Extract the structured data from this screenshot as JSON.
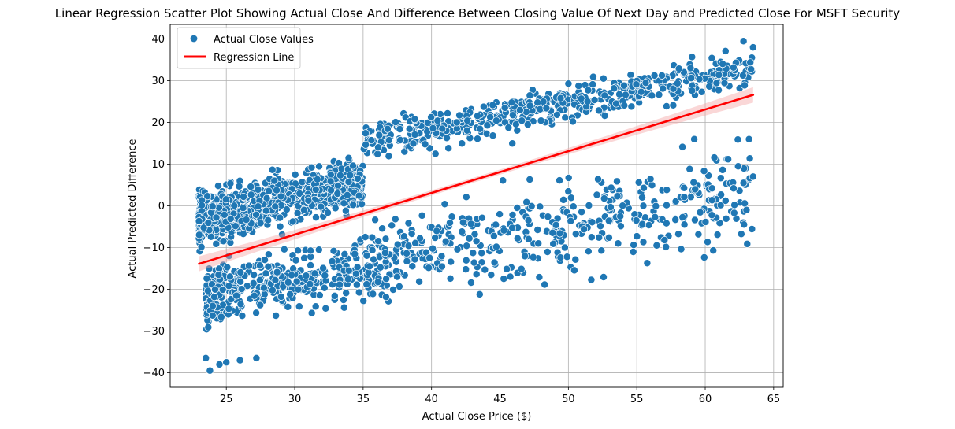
{
  "chart_data": {
    "type": "scatter",
    "title": "Linear Regression Scatter Plot Showing Actual Close And Difference Between Closing Value Of Next Day and Predicted Close For MSFT Security",
    "xlabel": "Actual Close Price ($)",
    "ylabel": "Actual Predicted Difference",
    "xlim": [
      20.9,
      65.7
    ],
    "ylim": [
      -43.5,
      43.5
    ],
    "x_ticks": [
      25,
      30,
      35,
      40,
      45,
      50,
      55,
      60,
      65
    ],
    "y_ticks": [
      -40,
      -30,
      -20,
      -10,
      0,
      10,
      20,
      30,
      40
    ],
    "grid": true,
    "legend_position": "top-left",
    "series": [
      {
        "name": "Actual Close Values",
        "kind": "scatter",
        "color": "#1f77b4",
        "generation": {
          "note_values": "points estimated from the figure",
          "clusters": [
            {
              "x_range": [
                23.0,
                35.0
              ],
              "count": 900,
              "y_center_at_x23": -3,
              "y_center_slope": 0.7,
              "spread": 5
            },
            {
              "x_range": [
                23.5,
                37.0
              ],
              "count": 420,
              "y_center_at_x23": -22,
              "y_center_slope": 0.6,
              "spread": 6
            },
            {
              "x_range": [
                35.0,
                63.5
              ],
              "count": 520,
              "y_center_at_x23": 8,
              "y_center_slope": 0.62,
              "spread": 4
            },
            {
              "x_range": [
                35.0,
                63.5
              ],
              "count": 420,
              "y_center_at_x23": -20,
              "y_center_slope": 0.55,
              "spread": 9
            }
          ],
          "outliers": [
            [
              23.8,
              -39.5
            ],
            [
              24.5,
              -38
            ],
            [
              25.0,
              -37.5
            ],
            [
              26.0,
              -37
            ],
            [
              27.2,
              -36.5
            ],
            [
              23.5,
              -36.5
            ],
            [
              62.8,
              39.5
            ],
            [
              63.5,
              38
            ],
            [
              63.2,
              16
            ],
            [
              63.5,
              7
            ],
            [
              62.8,
              5.5
            ],
            [
              59.2,
              16
            ],
            [
              60.3,
              4
            ],
            [
              60.5,
              4.2
            ]
          ]
        }
      },
      {
        "name": "Regression Line",
        "kind": "line",
        "color": "#ff0000",
        "x": [
          23.0,
          63.5
        ],
        "y": [
          -13.9,
          26.6
        ],
        "ci_color": "#f4a6a6"
      }
    ]
  }
}
